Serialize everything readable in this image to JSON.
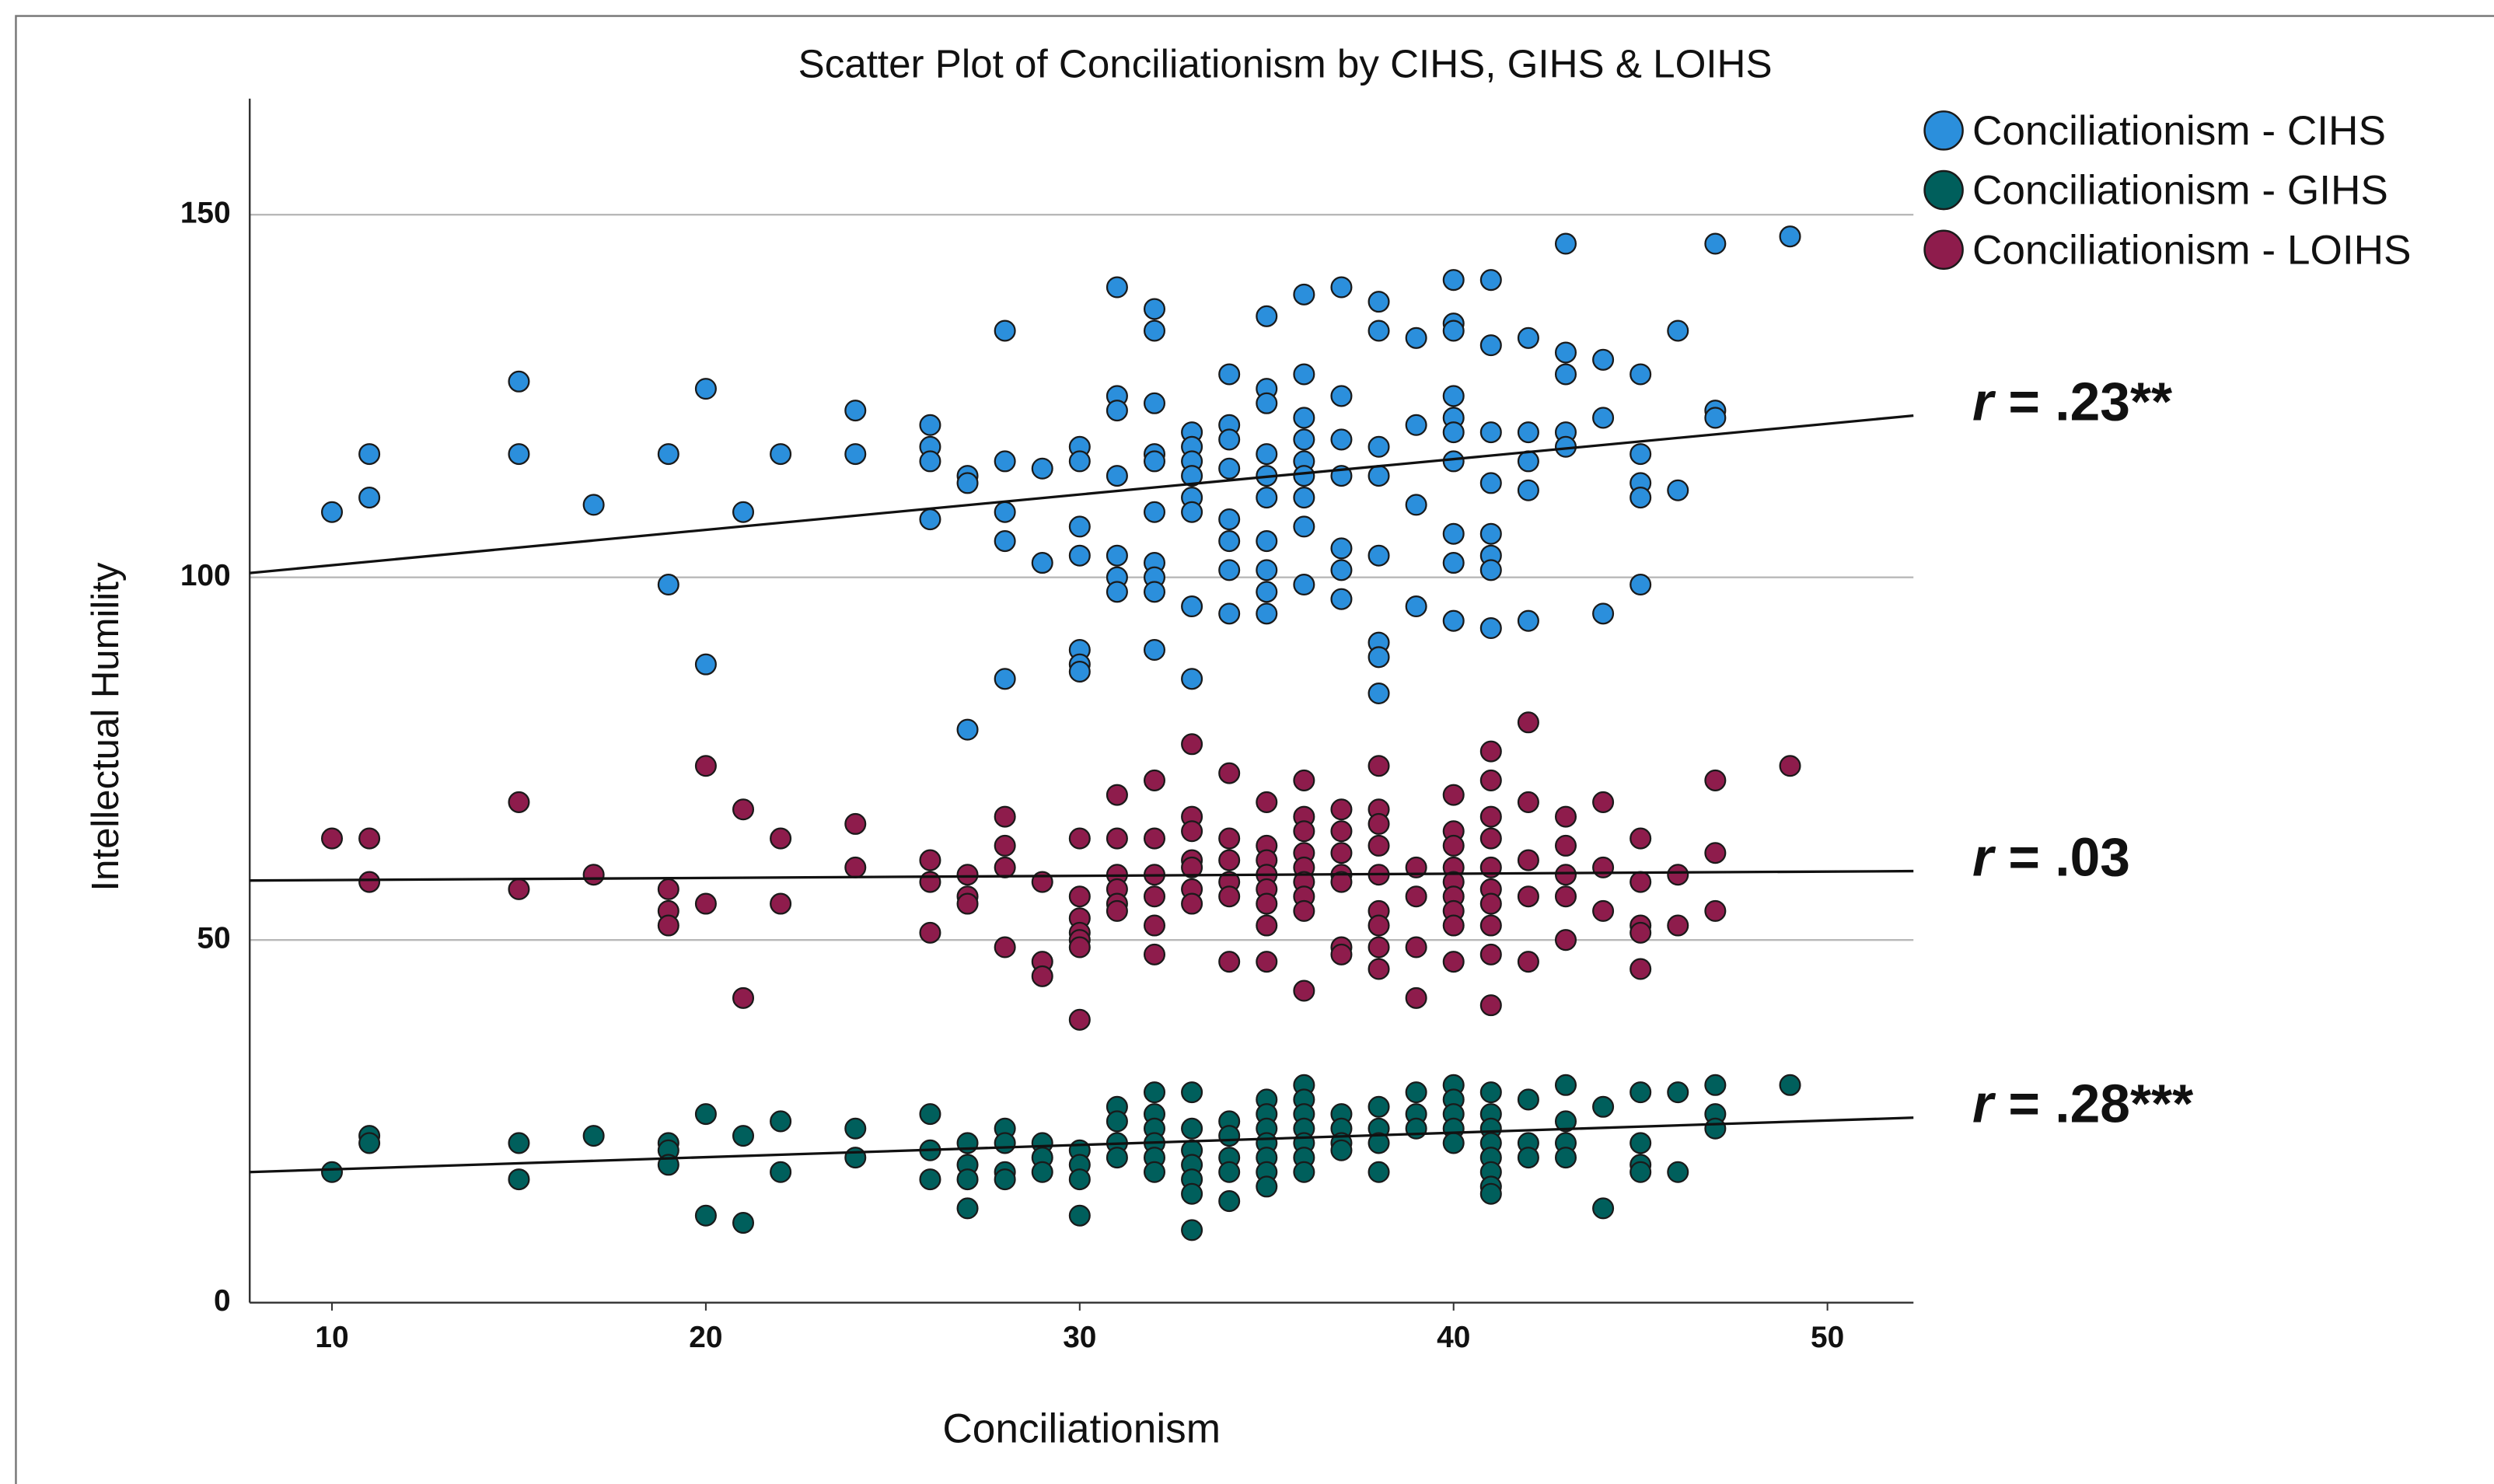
{
  "chart_data": {
    "type": "scatter",
    "title": "Scatter Plot of Conciliationism by CIHS, GIHS & LOIHS",
    "x_label": "Conciliationism",
    "y_label": "Intellectual Humility",
    "xlim": [
      7.8,
      52.3
    ],
    "ylim": [
      0,
      166
    ],
    "xticks": [
      10,
      20,
      30,
      40,
      50
    ],
    "yticks": [
      0,
      50,
      100,
      150
    ],
    "grid": true,
    "legend": "top-right",
    "series": [
      {
        "name": "Conciliationism - CIHS",
        "color": "#2b8fdc",
        "x": [
          10,
          11,
          11,
          15,
          15,
          17,
          19,
          19,
          20,
          20,
          21,
          22,
          24,
          24,
          26,
          26,
          26,
          26,
          27,
          27,
          27,
          28,
          28,
          28,
          28,
          28,
          29,
          29,
          30,
          30,
          30,
          30,
          30,
          30,
          30,
          31,
          31,
          31,
          31,
          31,
          31,
          31,
          32,
          32,
          32,
          32,
          32,
          32,
          32,
          32,
          32,
          32,
          33,
          33,
          33,
          33,
          33,
          33,
          33,
          33,
          34,
          34,
          34,
          34,
          34,
          34,
          34,
          34,
          35,
          35,
          35,
          35,
          35,
          35,
          35,
          35,
          35,
          35,
          36,
          36,
          36,
          36,
          36,
          36,
          36,
          36,
          36,
          37,
          37,
          37,
          37,
          37,
          37,
          37,
          38,
          38,
          38,
          38,
          38,
          38,
          38,
          38,
          39,
          39,
          39,
          39,
          40,
          40,
          40,
          40,
          40,
          40,
          40,
          40,
          40,
          40,
          41,
          41,
          41,
          41,
          41,
          41,
          41,
          41,
          42,
          42,
          42,
          42,
          42,
          43,
          43,
          43,
          43,
          43,
          44,
          44,
          44,
          45,
          45,
          45,
          45,
          45,
          46,
          46,
          47,
          47,
          47,
          49
        ],
        "values": [
          109,
          117,
          111,
          127,
          117,
          110,
          117,
          99,
          126,
          88,
          109,
          117,
          123,
          117,
          121,
          118,
          116,
          108,
          114,
          113,
          79,
          134,
          116,
          109,
          105,
          86,
          115,
          102,
          118,
          116,
          107,
          103,
          90,
          88,
          87,
          140,
          125,
          123,
          114,
          103,
          100,
          98,
          137,
          134,
          124,
          117,
          116,
          109,
          102,
          100,
          98,
          90,
          120,
          118,
          116,
          114,
          111,
          109,
          96,
          86,
          128,
          121,
          119,
          115,
          108,
          105,
          101,
          95,
          136,
          126,
          124,
          117,
          114,
          111,
          105,
          101,
          98,
          95,
          139,
          128,
          122,
          119,
          116,
          114,
          111,
          107,
          99,
          140,
          125,
          119,
          114,
          104,
          101,
          97,
          138,
          134,
          118,
          114,
          103,
          91,
          89,
          84,
          133,
          121,
          110,
          96,
          141,
          135,
          134,
          125,
          122,
          120,
          116,
          106,
          102,
          94,
          141,
          132,
          120,
          113,
          106,
          103,
          101,
          93,
          133,
          120,
          116,
          112,
          94,
          146,
          131,
          128,
          120,
          118,
          130,
          122,
          95,
          128,
          117,
          113,
          111,
          99,
          134,
          112,
          146,
          123,
          122,
          147
        ]
      },
      {
        "name": "Conciliationism - GIHS",
        "color": "#005f5c",
        "x": [
          10,
          11,
          11,
          15,
          15,
          17,
          19,
          19,
          19,
          20,
          20,
          21,
          21,
          22,
          22,
          24,
          24,
          26,
          26,
          26,
          27,
          27,
          27,
          27,
          28,
          28,
          28,
          28,
          29,
          29,
          29,
          30,
          30,
          30,
          30,
          31,
          31,
          31,
          31,
          32,
          32,
          32,
          32,
          32,
          32,
          33,
          33,
          33,
          33,
          33,
          33,
          33,
          34,
          34,
          34,
          34,
          34,
          35,
          35,
          35,
          35,
          35,
          35,
          35,
          36,
          36,
          36,
          36,
          36,
          36,
          36,
          37,
          37,
          37,
          37,
          38,
          38,
          38,
          38,
          39,
          39,
          39,
          40,
          40,
          40,
          40,
          40,
          41,
          41,
          41,
          41,
          41,
          41,
          41,
          41,
          42,
          42,
          42,
          43,
          43,
          43,
          43,
          44,
          44,
          45,
          45,
          45,
          45,
          46,
          46,
          47,
          47,
          47,
          49
        ],
        "values": [
          18,
          23,
          22,
          22,
          17,
          23,
          22,
          21,
          19,
          26,
          12,
          23,
          11,
          25,
          18,
          24,
          20,
          26,
          21,
          17,
          22,
          19,
          17,
          13,
          24,
          22,
          18,
          17,
          22,
          20,
          18,
          21,
          19,
          17,
          12,
          27,
          25,
          22,
          20,
          29,
          26,
          24,
          22,
          20,
          18,
          29,
          24,
          21,
          19,
          17,
          15,
          10,
          25,
          23,
          20,
          18,
          14,
          28,
          26,
          24,
          22,
          20,
          18,
          16,
          30,
          28,
          26,
          24,
          22,
          20,
          18,
          26,
          24,
          22,
          21,
          27,
          24,
          22,
          18,
          29,
          26,
          24,
          30,
          28,
          26,
          24,
          22,
          29,
          26,
          24,
          22,
          20,
          18,
          16,
          15,
          28,
          22,
          20,
          30,
          25,
          22,
          20,
          27,
          13,
          29,
          22,
          19,
          18,
          29,
          18,
          30,
          26,
          24,
          30
        ]
      },
      {
        "name": "Conciliationism - LOIHS",
        "color": "#8e1c4c",
        "x": [
          10,
          11,
          11,
          15,
          15,
          17,
          19,
          19,
          19,
          20,
          20,
          21,
          21,
          22,
          22,
          24,
          24,
          26,
          26,
          26,
          27,
          27,
          27,
          28,
          28,
          28,
          28,
          29,
          29,
          29,
          30,
          30,
          30,
          30,
          30,
          30,
          30,
          31,
          31,
          31,
          31,
          31,
          31,
          32,
          32,
          32,
          32,
          32,
          32,
          33,
          33,
          33,
          33,
          33,
          33,
          33,
          34,
          34,
          34,
          34,
          34,
          34,
          35,
          35,
          35,
          35,
          35,
          35,
          35,
          35,
          36,
          36,
          36,
          36,
          36,
          36,
          36,
          36,
          36,
          37,
          37,
          37,
          37,
          37,
          37,
          37,
          38,
          38,
          38,
          38,
          38,
          38,
          38,
          38,
          38,
          39,
          39,
          39,
          39,
          40,
          40,
          40,
          40,
          40,
          40,
          40,
          40,
          40,
          41,
          41,
          41,
          41,
          41,
          41,
          41,
          41,
          41,
          41,
          42,
          42,
          42,
          42,
          42,
          43,
          43,
          43,
          43,
          43,
          44,
          44,
          44,
          45,
          45,
          45,
          45,
          45,
          46,
          46,
          47,
          47,
          47,
          49
        ],
        "values": [
          64,
          64,
          58,
          69,
          57,
          59,
          57,
          54,
          52,
          74,
          55,
          68,
          42,
          64,
          55,
          66,
          60,
          61,
          58,
          51,
          59,
          56,
          55,
          67,
          63,
          60,
          49,
          58,
          47,
          45,
          64,
          56,
          53,
          51,
          50,
          49,
          39,
          70,
          64,
          59,
          57,
          55,
          54,
          72,
          64,
          59,
          56,
          52,
          48,
          77,
          67,
          65,
          61,
          60,
          57,
          55,
          73,
          64,
          61,
          58,
          56,
          47,
          69,
          63,
          61,
          59,
          57,
          55,
          52,
          47,
          72,
          67,
          65,
          62,
          60,
          58,
          56,
          54,
          43,
          68,
          65,
          62,
          59,
          58,
          49,
          48,
          74,
          68,
          66,
          63,
          59,
          54,
          52,
          49,
          46,
          60,
          56,
          49,
          42,
          70,
          65,
          63,
          60,
          58,
          56,
          54,
          52,
          47,
          76,
          72,
          67,
          64,
          60,
          57,
          55,
          52,
          48,
          41,
          80,
          69,
          61,
          56,
          47,
          67,
          63,
          59,
          56,
          50,
          69,
          60,
          54,
          64,
          58,
          52,
          51,
          46,
          59,
          52,
          72,
          62,
          54,
          74
        ]
      }
    ],
    "fit_lines": [
      {
        "x": [
          7.8,
          52.3
        ],
        "values": [
          100.6,
          122.3
        ],
        "label": "r = .23**"
      },
      {
        "x": [
          7.8,
          52.3
        ],
        "values": [
          18.0,
          25.5
        ],
        "label": "r = .28***"
      },
      {
        "x": [
          7.8,
          52.3
        ],
        "values": [
          58.2,
          59.5
        ],
        "label": "r = .03"
      }
    ]
  }
}
